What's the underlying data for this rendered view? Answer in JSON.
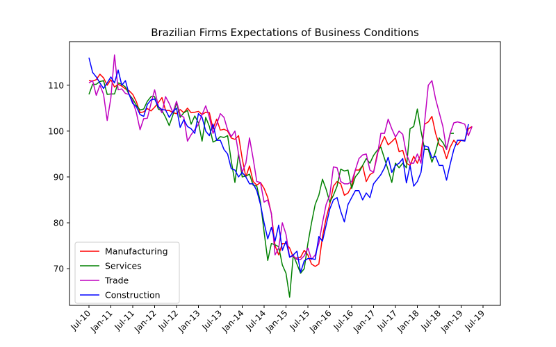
{
  "chart_data": {
    "type": "line",
    "title": "Brazilian Firms Expectations of Business Conditions",
    "xlabel": "",
    "ylabel": "",
    "x_start": "Jul-10",
    "x_tick_labels": [
      "Jul-10",
      "Jan-11",
      "Jul-11",
      "Jan-12",
      "Jul-12",
      "Jan-13",
      "Jul-13",
      "Jan-14",
      "Jul-14",
      "Jan-15",
      "Jul-15",
      "Jan-16",
      "Jul-16",
      "Jan-17",
      "Jul-17",
      "Jan-18",
      "Jul-18",
      "Jan-19",
      "Jul-19"
    ],
    "y_ticks": [
      70,
      80,
      90,
      100,
      110
    ],
    "ylim": [
      62,
      119.5
    ],
    "grid": false,
    "legend_position": "lower-left",
    "series": [
      {
        "name": "Manufacturing",
        "color": "#ff0000",
        "values": [
          111.0,
          110.9,
          111.2,
          112.4,
          111.6,
          110.0,
          111.2,
          109.6,
          110.2,
          109.8,
          109.2,
          108.8,
          108.0,
          106.4,
          104.0,
          104.2,
          104.9,
          104.4,
          105.2,
          106.2,
          107.3,
          104.5,
          104.5,
          104.0,
          103.8,
          104.7,
          104.0,
          105.0,
          104.0,
          104.1,
          104.3,
          103.6,
          104.1,
          104.0,
          100.5,
          102.6,
          100.2,
          100.4,
          100.0,
          98.5,
          98.2,
          99.0,
          94.0,
          90.0,
          92.4,
          89.0,
          88.2,
          88.8,
          87.5,
          85.5,
          82.0,
          75.0,
          73.0,
          75.5,
          75.5,
          74.5,
          72.5,
          72.3,
          72.5,
          74.0,
          73.0,
          71.0,
          70.5,
          71.0,
          77.0,
          81.0,
          84.0,
          88.0,
          89.0,
          88.5,
          86.0,
          86.5,
          88.0,
          91.5,
          91.5,
          92.5,
          89.0,
          90.5,
          91.0,
          95.0,
          97.0,
          98.8,
          97.0,
          97.7,
          98.5,
          95.5,
          95.8,
          93.0,
          92.5,
          94.5,
          93.0,
          95.0,
          101.5,
          102.0,
          103.2,
          99.5,
          97.0,
          96.5,
          94.0,
          96.5,
          98.0,
          97.0,
          98.0,
          98.0,
          100.5,
          101.0
        ]
      },
      {
        "name": "Services",
        "color": "#008000",
        "values": [
          108.0,
          110.2,
          110.2,
          110.8,
          111.0,
          108.0,
          108.1,
          108.1,
          110.5,
          110.2,
          109.6,
          108.0,
          107.0,
          105.6,
          104.6,
          104.8,
          106.5,
          107.5,
          107.5,
          104.8,
          104.5,
          103.0,
          101.2,
          103.5,
          106.2,
          103.0,
          104.0,
          104.5,
          101.5,
          103.3,
          101.8,
          97.8,
          103.0,
          101.0,
          97.6,
          98.0,
          98.8,
          98.6,
          99.0,
          93.5,
          88.8,
          95.0,
          90.0,
          90.2,
          90.6,
          88.2,
          88.0,
          84.5,
          78.0,
          71.8,
          75.5,
          75.2,
          74.8,
          70.8,
          69.0,
          63.8,
          73.0,
          71.0,
          69.0,
          70.0,
          75.5,
          80.0,
          84.0,
          86.0,
          89.5,
          87.3,
          84.5,
          86.0,
          88.0,
          91.7,
          91.3,
          91.5,
          87.5,
          90.0,
          91.0,
          92.5,
          94.0,
          93.0,
          94.7,
          95.8,
          96.5,
          94.0,
          91.5,
          88.8,
          93.0,
          92.0,
          93.0,
          92.0,
          100.5,
          101.0,
          104.8,
          100.0,
          96.0,
          96.0,
          93.2,
          95.5,
          98.5,
          97.5,
          96.0,
          99.5,
          99.5
        ]
      },
      {
        "name": "Trade",
        "color": "#bf00bf",
        "values": [
          110.5,
          111.0,
          107.8,
          110.0,
          108.0,
          102.3,
          107.2,
          116.6,
          109.0,
          109.2,
          108.2,
          108.0,
          106.5,
          104.0,
          100.3,
          102.7,
          102.8,
          106.0,
          109.0,
          105.5,
          104.0,
          107.5,
          106.0,
          104.0,
          106.5,
          103.5,
          103.0,
          97.8,
          99.2,
          100.3,
          101.5,
          103.6,
          105.5,
          103.0,
          99.5,
          101.5,
          103.8,
          103.0,
          100.3,
          98.8,
          100.0,
          95.0,
          91.0,
          93.0,
          98.5,
          94.0,
          89.0,
          88.8,
          84.5,
          85.0,
          82.0,
          73.0,
          74.5,
          80.0,
          77.5,
          72.5,
          72.8,
          72.0,
          72.0,
          72.8,
          74.5,
          72.0,
          73.0,
          75.5,
          80.0,
          84.0,
          86.0,
          92.2,
          92.0,
          89.0,
          88.5,
          88.5,
          89.0,
          91.5,
          94.0,
          94.8,
          95.0,
          91.5,
          91.0,
          94.5,
          99.5,
          99.5,
          102.6,
          100.5,
          98.7,
          100.0,
          99.3,
          95.0,
          93.0,
          93.0,
          95.0,
          93.0,
          102.0,
          110.0,
          111.0,
          107.0,
          104.0,
          101.0,
          96.0,
          99.5,
          101.8,
          102.0,
          101.8,
          101.5,
          99.0,
          101.0
        ]
      },
      {
        "name": "Construction",
        "color": "#0000ff",
        "values": [
          116.0,
          112.8,
          111.8,
          110.5,
          109.3,
          110.5,
          111.8,
          110.5,
          113.3,
          110.0,
          111.0,
          108.0,
          106.0,
          105.3,
          103.6,
          103.2,
          105.8,
          106.8,
          107.0,
          105.3,
          104.7,
          104.6,
          103.0,
          104.2,
          105.0,
          100.8,
          102.5,
          101.0,
          100.5,
          99.5,
          103.8,
          103.0,
          100.0,
          99.0,
          101.5,
          98.0,
          98.0,
          96.0,
          95.0,
          91.8,
          91.5,
          90.0,
          91.0,
          90.0,
          88.5,
          88.5,
          87.0,
          84.0,
          80.0,
          76.5,
          79.0,
          76.0,
          79.5,
          74.0,
          76.0,
          72.5,
          73.0,
          73.8,
          69.2,
          71.7,
          72.2,
          72.2,
          72.0,
          77.0,
          76.0,
          79.5,
          83.0,
          85.0,
          85.5,
          82.5,
          80.2,
          84.0,
          85.5,
          87.0,
          87.0,
          85.0,
          86.5,
          85.5,
          88.5,
          89.5,
          90.5,
          92.0,
          94.3,
          91.0,
          92.5,
          93.0,
          94.0,
          88.7,
          92.5,
          88.0,
          89.0,
          91.0,
          96.8,
          96.5,
          94.2,
          94.5,
          92.5,
          92.5,
          89.3,
          92.8,
          96.0,
          98.0,
          98.0,
          97.8,
          101.5
        ]
      }
    ]
  }
}
